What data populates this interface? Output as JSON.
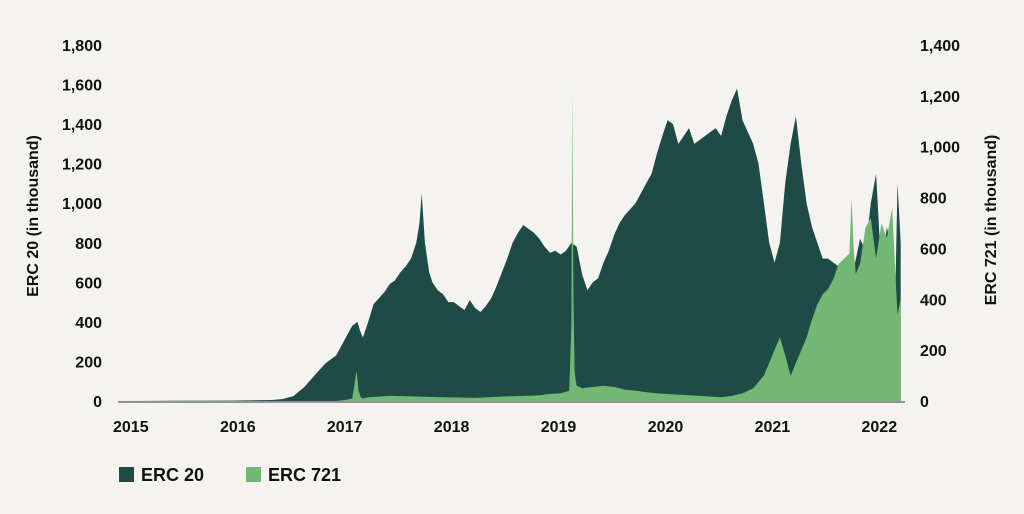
{
  "chart_data": {
    "type": "area",
    "ylabel_left": "ERC 20 (in thousand)",
    "ylabel_right": "ERC 721 (in thousand)",
    "x_ticks": [
      "2015",
      "2016",
      "2017",
      "2018",
      "2019",
      "2020",
      "2021",
      "2022"
    ],
    "y_left_ticks": [
      "0",
      "200",
      "400",
      "600",
      "800",
      "1,000",
      "1,200",
      "1,400",
      "1,600",
      "1,800"
    ],
    "y_right_ticks": [
      "0",
      "200",
      "400",
      "600",
      "800",
      "1,000",
      "1,200",
      "1,400"
    ],
    "ylim_left": [
      0,
      1800
    ],
    "ylim_right": [
      0,
      1400
    ],
    "xlim": [
      2014.96,
      2022.32
    ],
    "grid": false,
    "legend": "bottom-left",
    "colors": {
      "erc20": "#1f4b47",
      "erc721": "#72b874"
    },
    "series": [
      {
        "name": "ERC 20",
        "axis": "left",
        "x": [
          2015.0,
          2015.5,
          2016.0,
          2016.4,
          2016.5,
          2016.6,
          2016.7,
          2016.8,
          2016.9,
          2017.0,
          2017.05,
          2017.1,
          2017.15,
          2017.2,
          2017.22,
          2017.25,
          2017.3,
          2017.35,
          2017.4,
          2017.45,
          2017.5,
          2017.55,
          2017.6,
          2017.65,
          2017.7,
          2017.75,
          2017.78,
          2017.8,
          2017.83,
          2017.87,
          2017.9,
          2017.95,
          2018.0,
          2018.05,
          2018.1,
          2018.15,
          2018.2,
          2018.25,
          2018.3,
          2018.35,
          2018.4,
          2018.45,
          2018.5,
          2018.55,
          2018.6,
          2018.65,
          2018.7,
          2018.75,
          2018.8,
          2018.85,
          2018.9,
          2018.95,
          2019.0,
          2019.05,
          2019.1,
          2019.15,
          2019.2,
          2019.25,
          2019.3,
          2019.35,
          2019.4,
          2019.45,
          2019.5,
          2019.55,
          2019.6,
          2019.65,
          2019.7,
          2019.75,
          2019.8,
          2019.85,
          2019.9,
          2019.95,
          2020.0,
          2020.05,
          2020.1,
          2020.15,
          2020.2,
          2020.25,
          2020.3,
          2020.35,
          2020.4,
          2020.45,
          2020.5,
          2020.55,
          2020.6,
          2020.65,
          2020.7,
          2020.75,
          2020.8,
          2020.85,
          2020.9,
          2020.95,
          2021.0,
          2021.05,
          2021.1,
          2021.15,
          2021.2,
          2021.25,
          2021.3,
          2021.35,
          2021.4,
          2021.45,
          2021.5,
          2021.55,
          2021.6,
          2021.65,
          2021.7,
          2021.75,
          2021.8,
          2021.85,
          2021.9,
          2021.95,
          2022.0,
          2022.05,
          2022.1,
          2022.15,
          2022.2,
          2022.23,
          2022.25,
          2022.28
        ],
        "values": [
          0,
          1,
          2,
          5,
          10,
          25,
          70,
          130,
          190,
          230,
          280,
          330,
          380,
          400,
          360,
          320,
          400,
          490,
          520,
          550,
          590,
          610,
          650,
          680,
          720,
          800,
          900,
          1050,
          800,
          650,
          600,
          560,
          540,
          500,
          500,
          480,
          460,
          510,
          470,
          450,
          480,
          520,
          580,
          650,
          720,
          800,
          850,
          890,
          870,
          850,
          820,
          780,
          750,
          760,
          740,
          760,
          800,
          780,
          640,
          560,
          600,
          620,
          700,
          760,
          840,
          900,
          940,
          970,
          1000,
          1050,
          1100,
          1150,
          1250,
          1340,
          1420,
          1400,
          1300,
          1340,
          1380,
          1300,
          1320,
          1340,
          1360,
          1380,
          1340,
          1440,
          1520,
          1580,
          1420,
          1360,
          1300,
          1200,
          1000,
          800,
          700,
          800,
          1100,
          1300,
          1440,
          1200,
          1000,
          880,
          800,
          720,
          720,
          700,
          680,
          640,
          660,
          690,
          820,
          760,
          1000,
          1150,
          640,
          880,
          760,
          560,
          1100,
          800
        ]
      },
      {
        "name": "ERC 721",
        "axis": "right",
        "x": [
          2015.0,
          2016.0,
          2017.0,
          2017.1,
          2017.15,
          2017.17,
          2017.19,
          2017.21,
          2017.23,
          2017.25,
          2017.3,
          2017.5,
          2017.7,
          2018.0,
          2018.3,
          2018.6,
          2018.9,
          2019.0,
          2019.1,
          2019.18,
          2019.2,
          2019.21,
          2019.22,
          2019.23,
          2019.24,
          2019.25,
          2019.28,
          2019.3,
          2019.4,
          2019.5,
          2019.6,
          2019.7,
          2019.8,
          2019.9,
          2020.0,
          2020.2,
          2020.4,
          2020.6,
          2020.7,
          2020.8,
          2020.9,
          2021.0,
          2021.05,
          2021.1,
          2021.15,
          2021.2,
          2021.25,
          2021.3,
          2021.35,
          2021.4,
          2021.45,
          2021.5,
          2021.55,
          2021.6,
          2021.65,
          2021.7,
          2021.75,
          2021.8,
          2021.82,
          2021.84,
          2021.86,
          2021.9,
          2021.95,
          2022.0,
          2022.05,
          2022.1,
          2022.15,
          2022.2,
          2022.23,
          2022.25,
          2022.28
        ],
        "values": [
          0,
          0,
          0,
          5,
          10,
          60,
          120,
          40,
          15,
          10,
          15,
          20,
          18,
          15,
          12,
          18,
          22,
          28,
          30,
          40,
          300,
          1220,
          400,
          120,
          80,
          60,
          55,
          50,
          55,
          60,
          55,
          45,
          40,
          35,
          30,
          25,
          20,
          15,
          20,
          30,
          50,
          100,
          150,
          200,
          250,
          180,
          100,
          150,
          200,
          250,
          320,
          380,
          420,
          440,
          480,
          540,
          560,
          580,
          800,
          600,
          500,
          540,
          680,
          720,
          560,
          700,
          640,
          760,
          500,
          340,
          400
        ]
      }
    ]
  }
}
